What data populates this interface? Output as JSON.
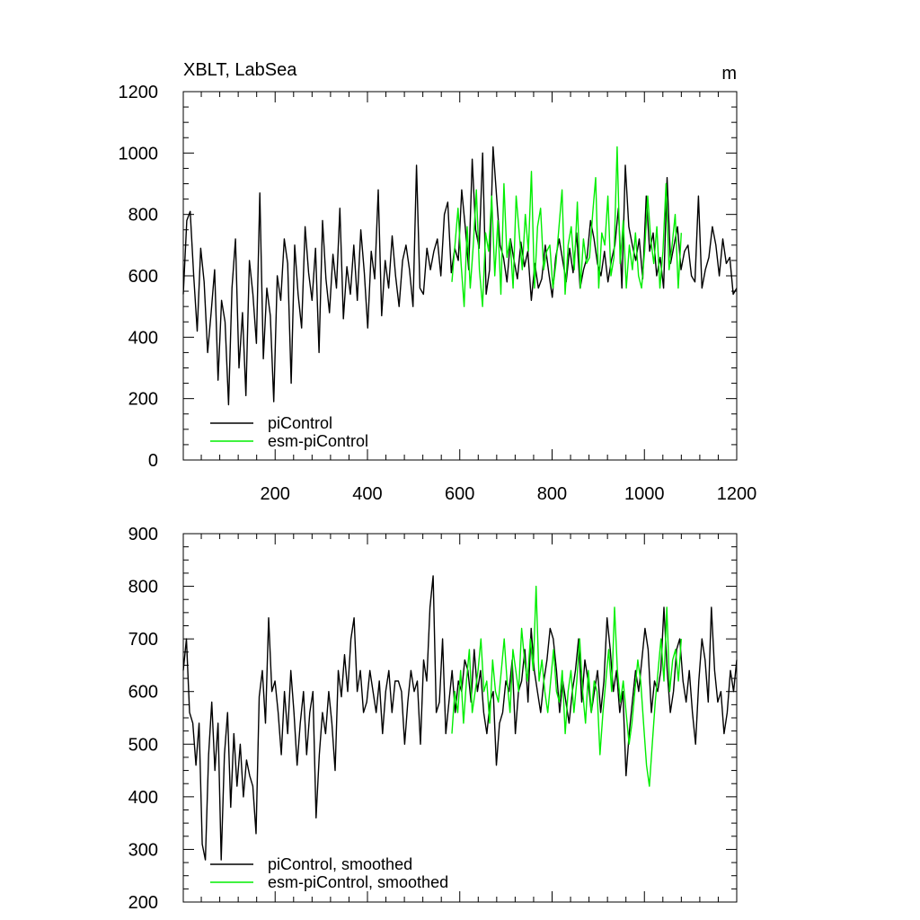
{
  "chart_data": [
    {
      "type": "line",
      "title": "XBLT, LabSea",
      "units": "m",
      "xlim": [
        1,
        1200
      ],
      "ylim": [
        0,
        1200
      ],
      "xticks": [
        200,
        400,
        600,
        800,
        1000,
        1200
      ],
      "yticks": [
        0,
        200,
        400,
        600,
        800,
        1000,
        1200
      ],
      "grid": false,
      "legend": "bottom-left",
      "series": [
        {
          "name": "piControl",
          "color": "#000000",
          "x_range": [
            1,
            1200
          ],
          "values": [
            540,
            780,
            810,
            600,
            420,
            690,
            580,
            350,
            480,
            620,
            260,
            520,
            450,
            180,
            560,
            720,
            300,
            480,
            210,
            650,
            540,
            380,
            870,
            330,
            560,
            470,
            190,
            600,
            520,
            720,
            640,
            250,
            700,
            540,
            430,
            760,
            610,
            520,
            690,
            350,
            780,
            590,
            480,
            670,
            560,
            820,
            460,
            630,
            540,
            700,
            520,
            750,
            610,
            430,
            680,
            590,
            880,
            470,
            650,
            560,
            730,
            600,
            500,
            650,
            700,
            620,
            500,
            960,
            560,
            540,
            690,
            620,
            680,
            720,
            600,
            800,
            840,
            610,
            690,
            650,
            880,
            760,
            620,
            980,
            750,
            690,
            1000,
            540,
            620,
            1020,
            860,
            700,
            660,
            580,
            720,
            650,
            590,
            710,
            630,
            680,
            520,
            640,
            560,
            590,
            700,
            610,
            530,
            660,
            720,
            650,
            580,
            690,
            610,
            740,
            560,
            620,
            660,
            780,
            720,
            640,
            600,
            680,
            580,
            650,
            700,
            820,
            560,
            960,
            760,
            700,
            650,
            720,
            590,
            860,
            680,
            740,
            600,
            660,
            560,
            920,
            640,
            700,
            760,
            620,
            680,
            700,
            600,
            580,
            860,
            560,
            620,
            660,
            760,
            700,
            600,
            720,
            640,
            660,
            540,
            560
          ],
          "x_end": 1200
        },
        {
          "name": "esm-piControl",
          "color": "#00ee00",
          "x_range": [
            583,
            1080
          ],
          "values": [
            580,
            700,
            820,
            640,
            500,
            760,
            560,
            700,
            880,
            620,
            500,
            740,
            680,
            860,
            600,
            780,
            540,
            900,
            660,
            720,
            560,
            860,
            740,
            620,
            800,
            680,
            940,
            560,
            760,
            820,
            620,
            680,
            700,
            560,
            640,
            760,
            880,
            540,
            700,
            760,
            620,
            840,
            560,
            720,
            640,
            660,
            800,
            920,
            560,
            740,
            700,
            860,
            600,
            660,
            1020,
            640,
            780,
            560,
            700,
            620,
            740,
            600,
            560,
            680,
            860,
            720,
            640,
            760,
            560,
            680,
            900,
            620,
            700,
            800,
            560,
            740
          ],
          "x_end": 1080
        }
      ]
    },
    {
      "type": "line",
      "title": "",
      "units": "",
      "xlim": [
        1,
        1200
      ],
      "ylim": [
        200,
        900
      ],
      "yticks": [
        200,
        300,
        400,
        500,
        600,
        700,
        800,
        900
      ],
      "grid": false,
      "legend": "bottom-left",
      "series": [
        {
          "name": "piControl, smoothed",
          "color": "#000000",
          "x_range": [
            1,
            1200
          ],
          "values": [
            640,
            700,
            560,
            540,
            460,
            540,
            310,
            280,
            480,
            580,
            450,
            540,
            280,
            480,
            560,
            380,
            520,
            420,
            500,
            400,
            470,
            440,
            420,
            330,
            590,
            640,
            540,
            740,
            600,
            620,
            560,
            480,
            600,
            520,
            640,
            560,
            460,
            540,
            600,
            480,
            560,
            600,
            360,
            480,
            560,
            520,
            600,
            540,
            450,
            640,
            590,
            670,
            600,
            700,
            740,
            600,
            640,
            560,
            580,
            640,
            600,
            560,
            620,
            520,
            600,
            640,
            560,
            620,
            620,
            600,
            500,
            580,
            640,
            600,
            620,
            500,
            660,
            620,
            760,
            820,
            560,
            580,
            700,
            520,
            580,
            640,
            560,
            620,
            600,
            660,
            640,
            580,
            680,
            600,
            640,
            560,
            520,
            580,
            600,
            460,
            540,
            560,
            620,
            600,
            660,
            520,
            600,
            620,
            680,
            580,
            720,
            640,
            600,
            560,
            620,
            660,
            720,
            700,
            640,
            560,
            620,
            580,
            540,
            600,
            640,
            700,
            580,
            660,
            620,
            560,
            600,
            640,
            560,
            620,
            740,
            680,
            600,
            640,
            560,
            600,
            440,
            520,
            580,
            640,
            600,
            660,
            720,
            680,
            560,
            620,
            600,
            640,
            760,
            640,
            560,
            600,
            680,
            700,
            620,
            580,
            640,
            560,
            500,
            620,
            700,
            660,
            580,
            760,
            640,
            580,
            600,
            520,
            560,
            640,
            600,
            660
          ],
          "x_end": 1200
        },
        {
          "name": "esm-piControl, smoothed",
          "color": "#00ee00",
          "x_range": [
            583,
            1080
          ],
          "values": [
            520,
            600,
            560,
            640,
            540,
            620,
            680,
            560,
            600,
            640,
            700,
            600,
            620,
            540,
            660,
            600,
            580,
            640,
            700,
            620,
            560,
            680,
            640,
            600,
            720,
            660,
            620,
            700,
            640,
            800,
            620,
            660,
            600,
            560,
            620,
            680,
            600,
            580,
            640,
            520,
            600,
            640,
            560,
            620,
            700,
            600,
            540,
            640,
            560,
            620,
            600,
            480,
            560,
            620,
            680,
            600,
            760,
            640,
            580,
            620,
            560,
            500,
            540,
            600,
            660,
            620,
            540,
            460,
            420,
            500,
            580,
            640,
            700,
            620,
            760,
            600,
            660,
            680,
            620,
            700
          ],
          "x_end": 1080
        }
      ]
    }
  ]
}
